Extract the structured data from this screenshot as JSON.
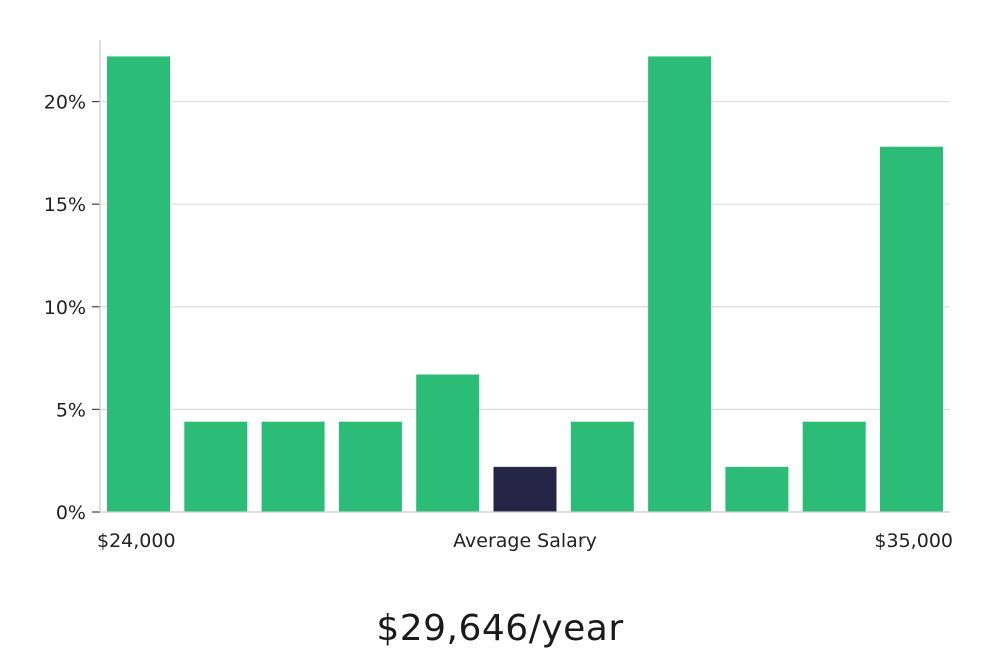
{
  "chart_data": {
    "type": "bar",
    "values": [
      22.2,
      4.4,
      4.4,
      4.4,
      6.7,
      2.2,
      4.4,
      22.2,
      2.2,
      4.4,
      17.8
    ],
    "highlight_index": 5,
    "ylim": [
      0,
      23
    ],
    "yticks": [
      0,
      5,
      10,
      15,
      20
    ],
    "ytick_labels": [
      "0%",
      "5%",
      "10%",
      "15%",
      "20%"
    ],
    "x_min_label": "$24,000",
    "x_max_label": "$35,000",
    "xlabel": "Average Salary",
    "grid": true
  },
  "colors": {
    "bar": "#2bbd77",
    "highlight": "#262547",
    "grid": "#dddddd",
    "axis": "#cccccc"
  },
  "summary": {
    "salary": "$29,646/year"
  }
}
